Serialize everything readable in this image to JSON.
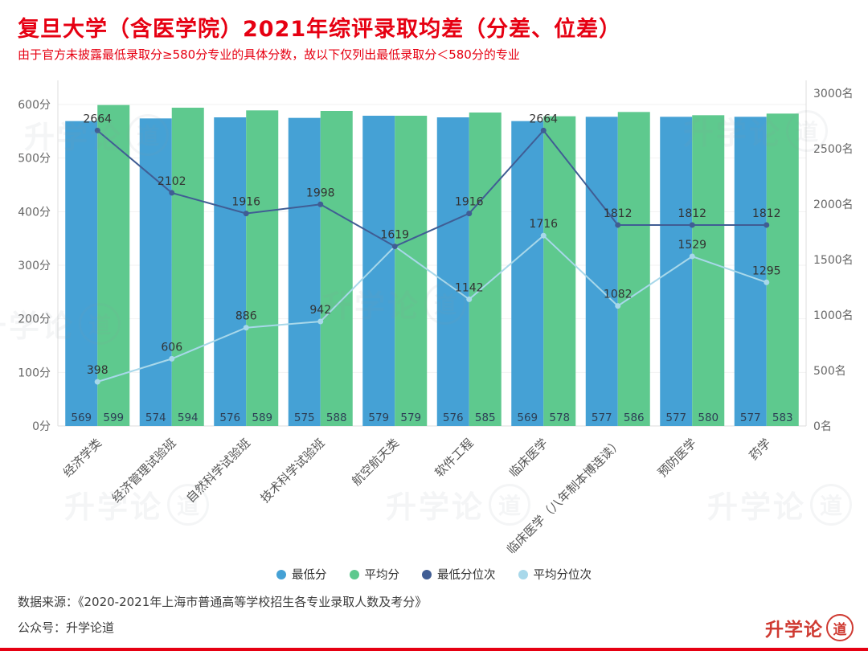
{
  "title": "复旦大学（含医学院）2021年综评录取均差（分差、位差）",
  "subtitle": "由于官方未披露最低录取分≥580分专业的具体分数，故以下仅列出最低录取分＜580分的专业",
  "watermark": {
    "prefix": "升学论",
    "sealed": "道"
  },
  "colors": {
    "title": "#e60012",
    "grid": "#f2f2f2",
    "axis_line": "#dddddd",
    "tick_label": "#666666",
    "category_label": "#555555",
    "bar_value_label": "#2e4057",
    "point_value_label": "#333333"
  },
  "chart_data": {
    "type": "bar+line",
    "categories": [
      "经济学类",
      "经济管理试验班",
      "自然科学试验班",
      "技术科学试验班",
      "航空航天类",
      "软件工程",
      "临床医学",
      "临床医学（八年制本博连读）",
      "预防医学",
      "药学"
    ],
    "series": [
      {
        "name": "最低分",
        "type": "bar",
        "axis": "left",
        "color": "#45a1d5",
        "values": [
          569,
          574,
          576,
          575,
          579,
          576,
          569,
          577,
          577,
          577
        ]
      },
      {
        "name": "平均分",
        "type": "bar",
        "axis": "left",
        "color": "#5ec98e",
        "values": [
          599,
          594,
          589,
          588,
          579,
          585,
          578,
          586,
          580,
          583
        ]
      },
      {
        "name": "最低分位次",
        "type": "line",
        "axis": "right",
        "color": "#405d94",
        "values": [
          2664,
          2102,
          1916,
          1998,
          1619,
          1916,
          2664,
          1812,
          1812,
          1812
        ]
      },
      {
        "name": "平均分位次",
        "type": "line",
        "axis": "right",
        "color": "#a8d8ea",
        "values": [
          398,
          606,
          886,
          942,
          1619,
          1142,
          1716,
          1082,
          1529,
          1295
        ]
      }
    ],
    "left_axis": {
      "unit": "分",
      "ticks": [
        0,
        100,
        200,
        300,
        400,
        500,
        600
      ],
      "max": 600
    },
    "right_axis": {
      "unit": "名",
      "ticks": [
        0,
        500,
        1000,
        1500,
        2000,
        2500,
        3000
      ],
      "max": 3000
    },
    "legend_position": "bottom",
    "grid": true
  },
  "footer": {
    "source": "数据来源：《2020-2021年上海市普通高等学校招生各专业录取人数及考分》",
    "account": "公众号：升学论道",
    "logo_prefix": "升学论",
    "logo_seal": "道"
  }
}
